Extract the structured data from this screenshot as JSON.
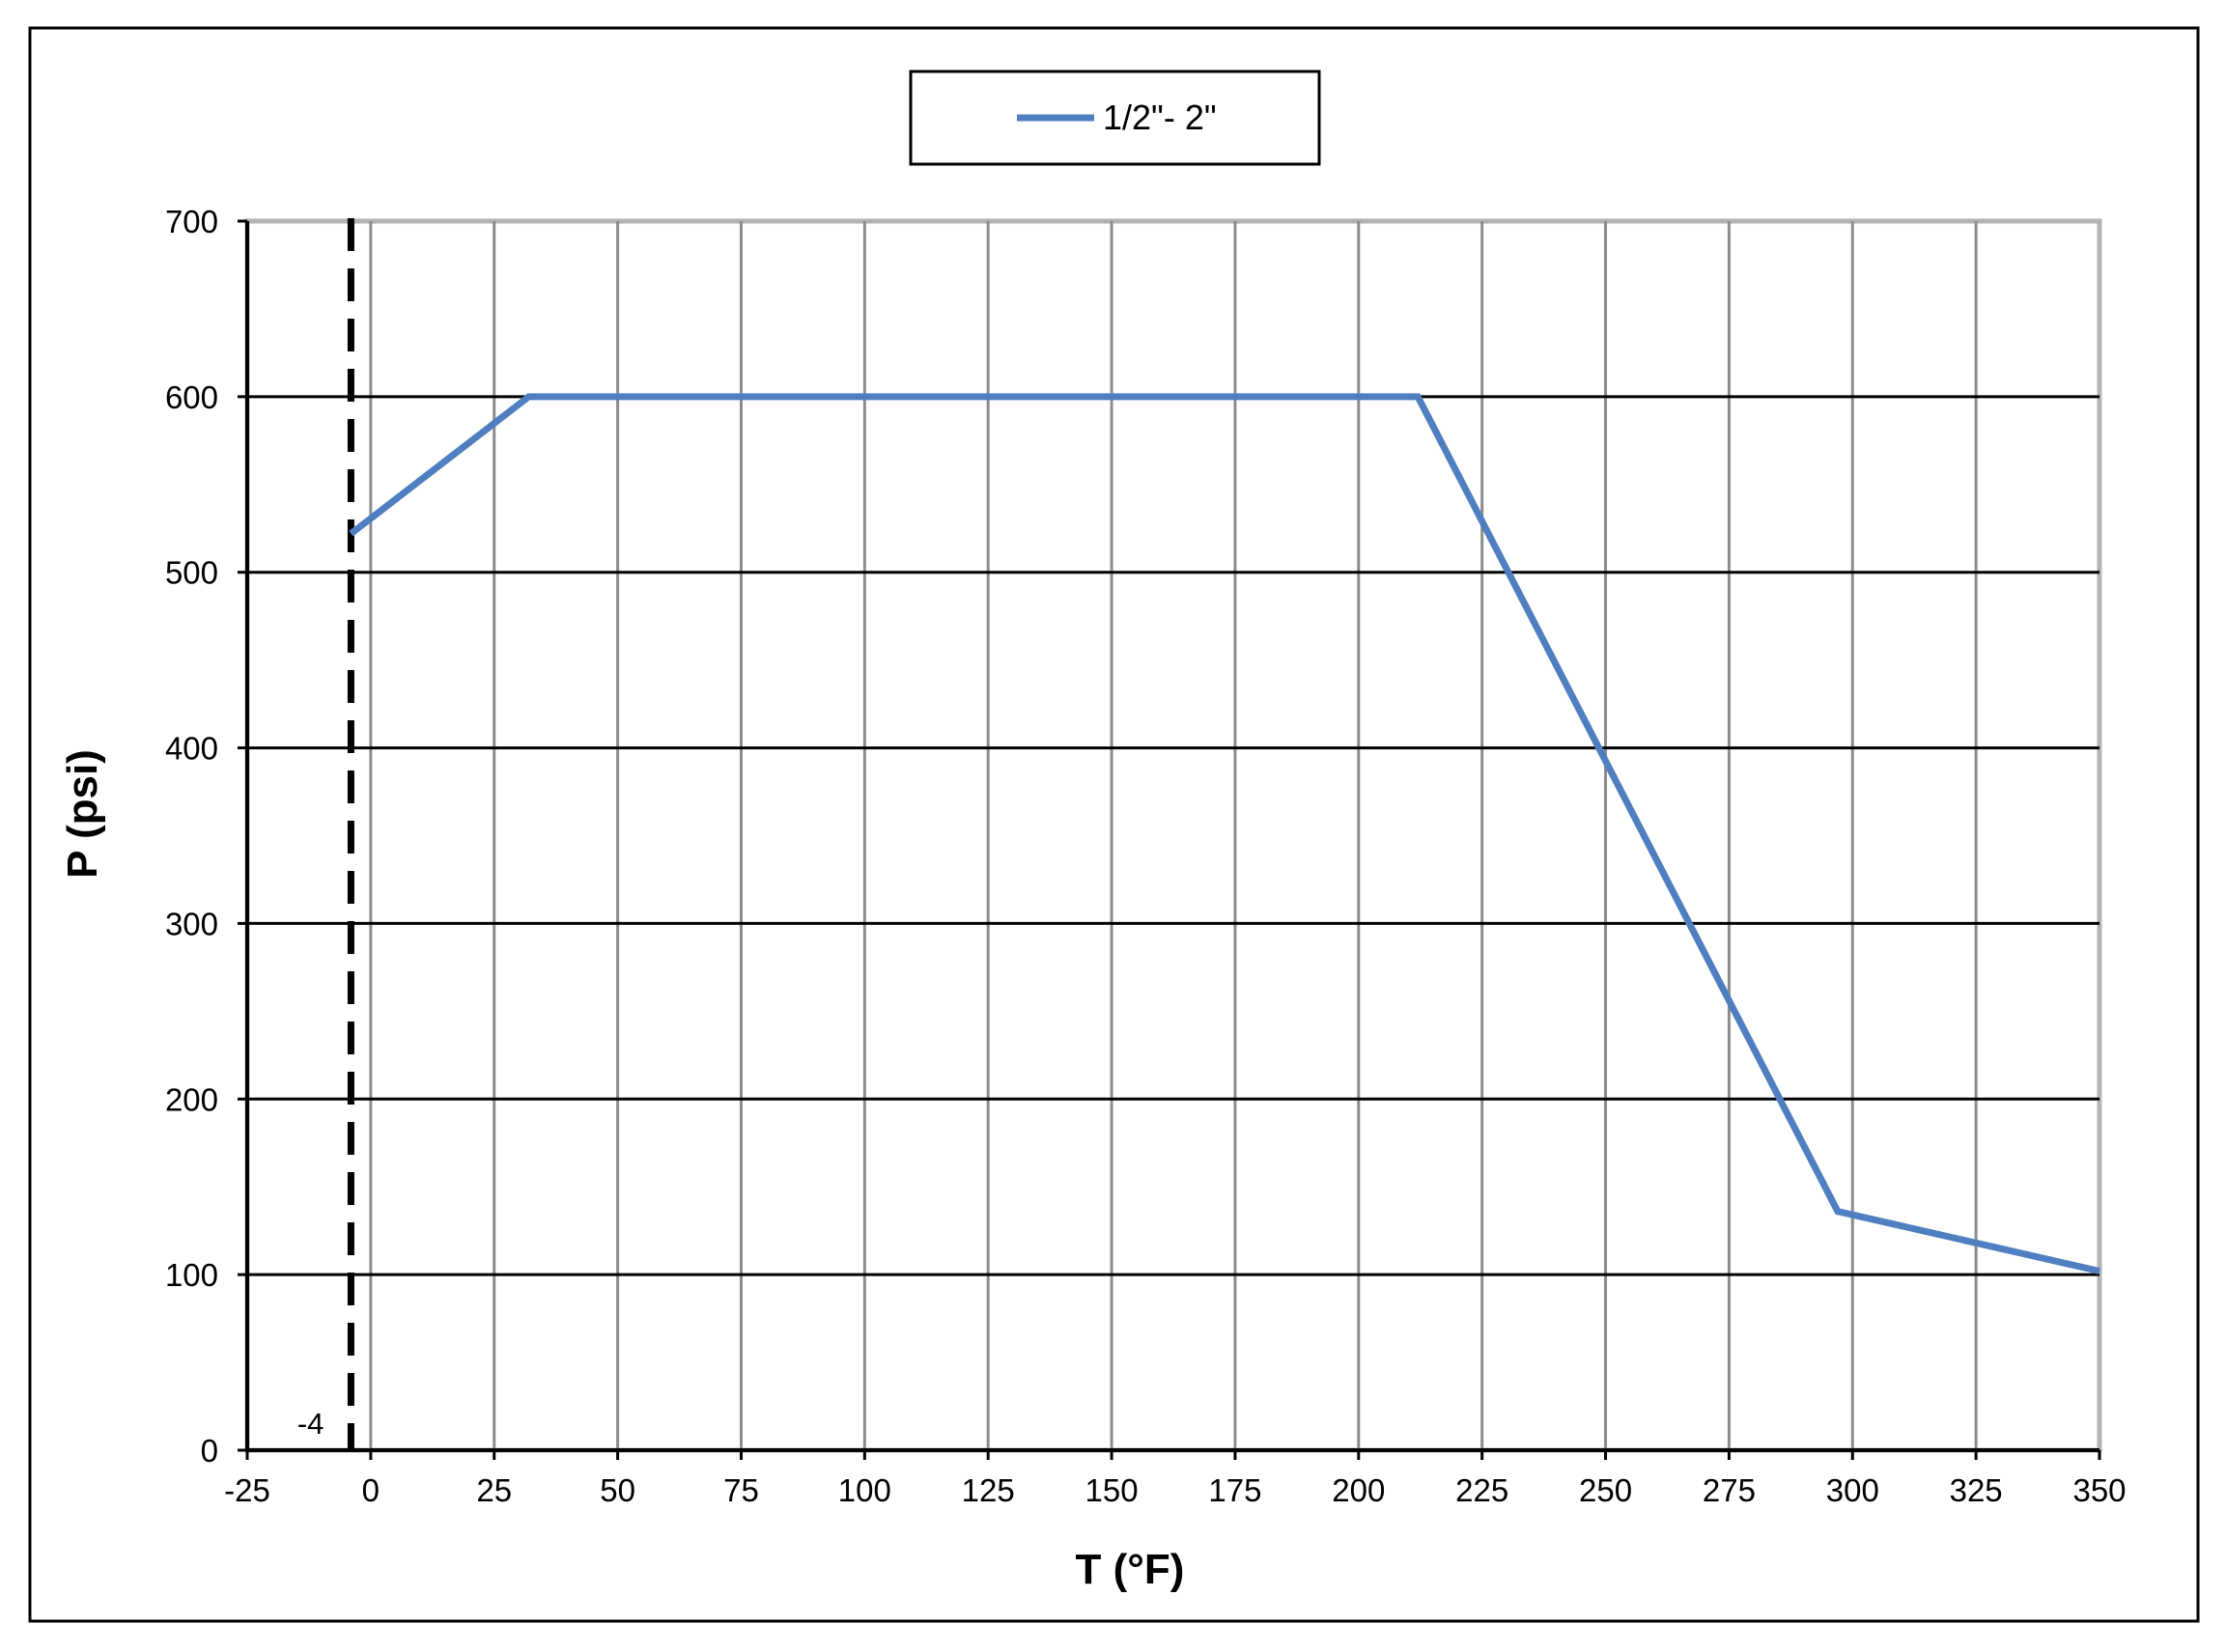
{
  "chart_data": {
    "type": "line",
    "title": "",
    "xlabel": "T (°F)",
    "ylabel": "P (psi)",
    "xlim": [
      -25,
      350
    ],
    "ylim": [
      0,
      700
    ],
    "x_ticks": [
      -25,
      0,
      25,
      50,
      75,
      100,
      125,
      150,
      175,
      200,
      225,
      250,
      275,
      300,
      325,
      350
    ],
    "y_ticks": [
      0,
      100,
      200,
      300,
      400,
      500,
      600,
      700
    ],
    "grid": true,
    "legend": {
      "placement": "top-center",
      "entries": [
        "1/2\"- 2\""
      ]
    },
    "series": [
      {
        "name": "1/2\"- 2\"",
        "color": "#4f7fc0",
        "x": [
          -4,
          32,
          212,
          297,
          350
        ],
        "y": [
          522,
          600,
          600,
          136,
          102
        ]
      }
    ],
    "reference_lines": [
      {
        "orientation": "vertical",
        "x": -4,
        "style": "dashed",
        "color": "#000000",
        "label": "-4"
      }
    ]
  }
}
